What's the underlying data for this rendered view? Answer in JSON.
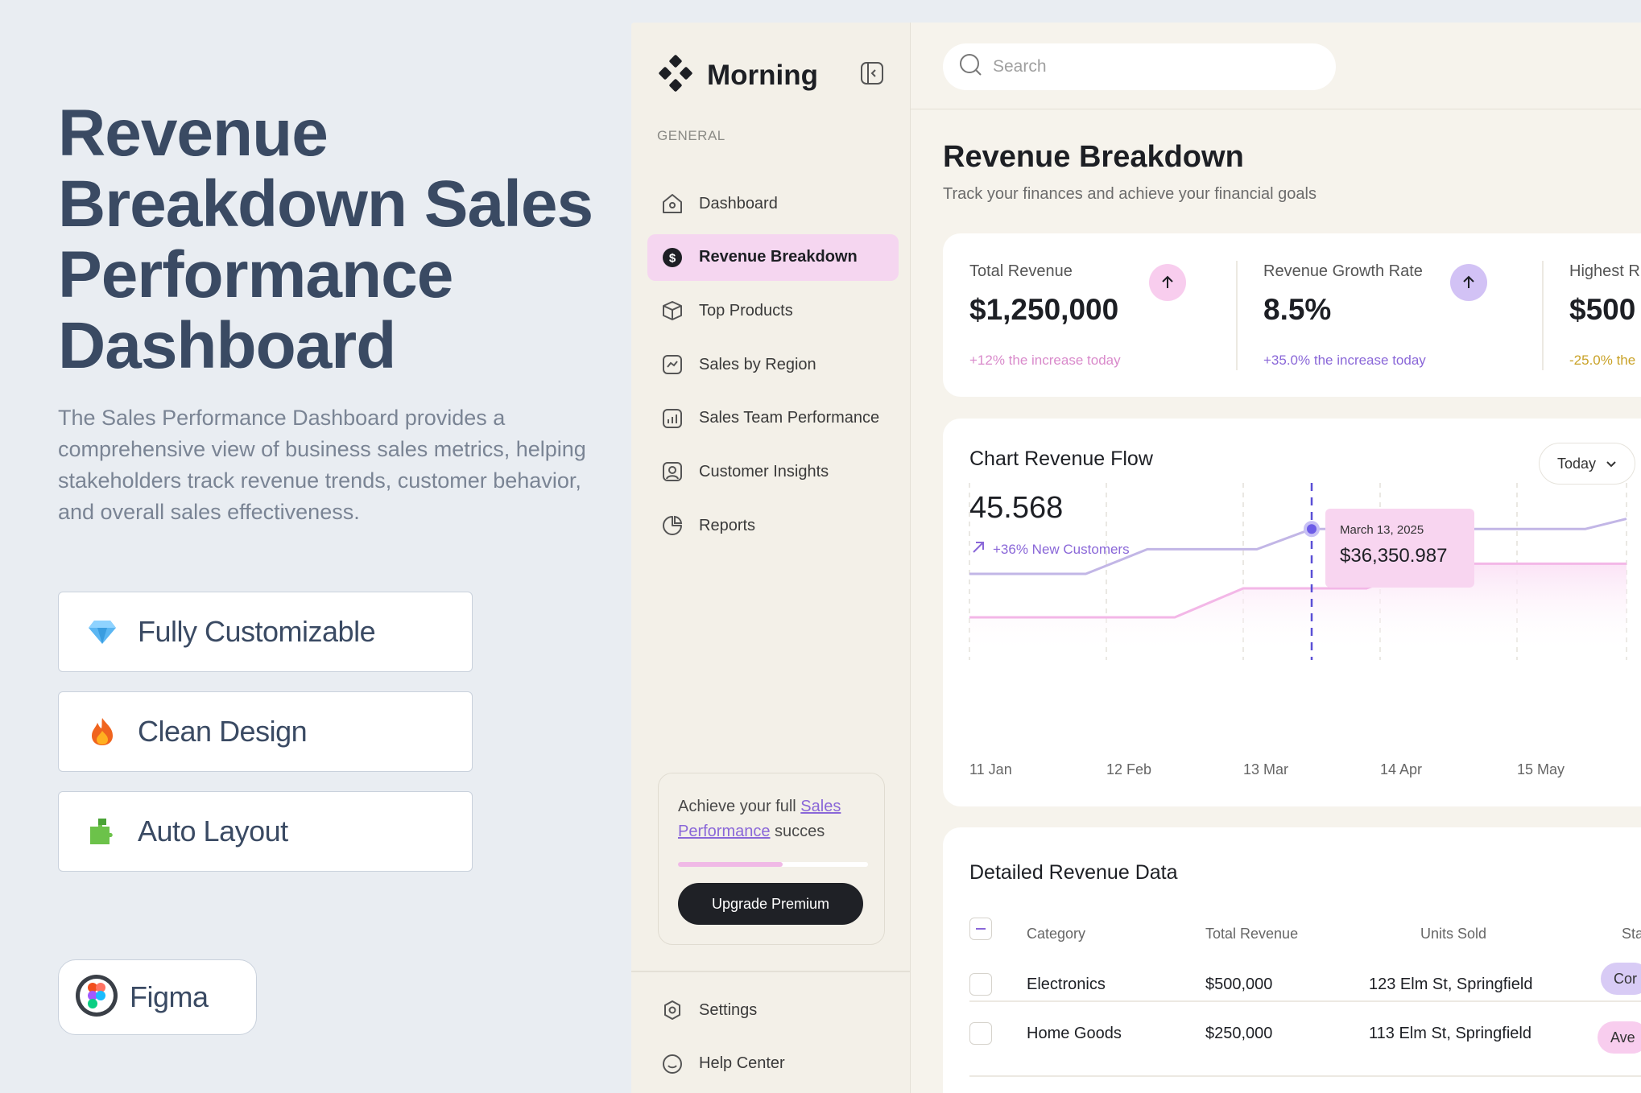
{
  "hero": {
    "title": "Revenue Breakdown Sales Performance Dashboard",
    "description": "The Sales Performance Dashboard provides a comprehensive view of business sales metrics, helping stakeholders track revenue trends, customer behavior, and overall sales effectiveness.",
    "features": [
      {
        "label": "Fully Customizable",
        "icon": "gem-icon"
      },
      {
        "label": "Clean Design",
        "icon": "fire-icon"
      },
      {
        "label": "Auto Layout",
        "icon": "puzzle-icon"
      }
    ],
    "figma_label": "Figma"
  },
  "app": {
    "brand": "Morning",
    "section_label": "GENERAL",
    "nav": [
      {
        "label": "Dashboard",
        "icon": "home-icon"
      },
      {
        "label": "Revenue Breakdown",
        "icon": "dollar-icon",
        "active": true
      },
      {
        "label": "Top Products",
        "icon": "box-icon"
      },
      {
        "label": "Sales by Region",
        "icon": "trend-icon"
      },
      {
        "label": "Sales Team Performance",
        "icon": "bar-chart-icon"
      },
      {
        "label": "Customer Insights",
        "icon": "user-icon"
      },
      {
        "label": "Reports",
        "icon": "pie-icon"
      }
    ],
    "promo": {
      "text_before": "Achieve your full ",
      "link_text": "Sales Performance",
      "text_after": " succes",
      "progress": 0.55,
      "button": "Upgrade Premium"
    },
    "bottom_nav": [
      {
        "label": "Settings",
        "icon": "gear-icon"
      },
      {
        "label": "Help Center",
        "icon": "help-icon"
      }
    ]
  },
  "search": {
    "placeholder": "Search"
  },
  "page": {
    "title": "Revenue Breakdown",
    "subtitle": "Track your finances and achieve your financial goals"
  },
  "stats": [
    {
      "label": "Total Revenue",
      "value": "$1,250,000",
      "note": "+12% the increase today",
      "note_color": "#d98acb",
      "arrow_bg": "#f8cdee"
    },
    {
      "label": "Revenue Growth Rate",
      "value": "8.5%",
      "note": "+35.0% the increase today",
      "note_color": "#8a67d8",
      "arrow_bg": "#d2c2f5"
    },
    {
      "label": "Highest R",
      "value": "$500",
      "note": "-25.0% the",
      "note_color": "#c9a227"
    }
  ],
  "chart": {
    "title": "Chart Revenue Flow",
    "value": "45.568",
    "change": "+36% New Customers",
    "dropdown": "Today",
    "tooltip_date": "March 13, 2025",
    "tooltip_value": "$36,350.987"
  },
  "chart_data": {
    "type": "line",
    "categories": [
      "11 Jan",
      "12 Feb",
      "13 Mar",
      "14 Apr",
      "15 May"
    ],
    "title": "Chart Revenue Flow",
    "series": [
      {
        "color": "#c2b6e6",
        "points": [
          [
            0,
            0.55
          ],
          [
            0.85,
            0.55
          ],
          [
            1.3,
            0.72
          ],
          [
            2.1,
            0.72
          ],
          [
            2.5,
            0.86
          ],
          [
            3.2,
            0.86
          ],
          [
            4.5,
            0.86
          ],
          [
            4.8,
            0.93
          ]
        ]
      },
      {
        "color": "#f3b7e7",
        "points": [
          [
            0,
            0.25
          ],
          [
            1.5,
            0.25
          ],
          [
            2.0,
            0.45
          ],
          [
            2.9,
            0.45
          ],
          [
            3.4,
            0.62
          ],
          [
            4.8,
            0.62
          ]
        ]
      }
    ],
    "highlight": {
      "x": 2.5,
      "date": "March 13, 2025",
      "value": "$36,350.987"
    },
    "grid": "vertical dashed"
  },
  "table": {
    "title": "Detailed Revenue Data",
    "headers": [
      "Category",
      "Total Revenue",
      "Units Sold",
      "Sta"
    ],
    "rows": [
      {
        "category": "Electronics",
        "revenue": "$500,000",
        "units": "123 Elm St, Springfield",
        "status": "Cor",
        "status_color": "#d8cbf5"
      },
      {
        "category": "Home Goods",
        "revenue": "$250,000",
        "units": "113 Elm St, Springfield",
        "status": "Ave",
        "status_color": "#f8cdee"
      }
    ]
  }
}
